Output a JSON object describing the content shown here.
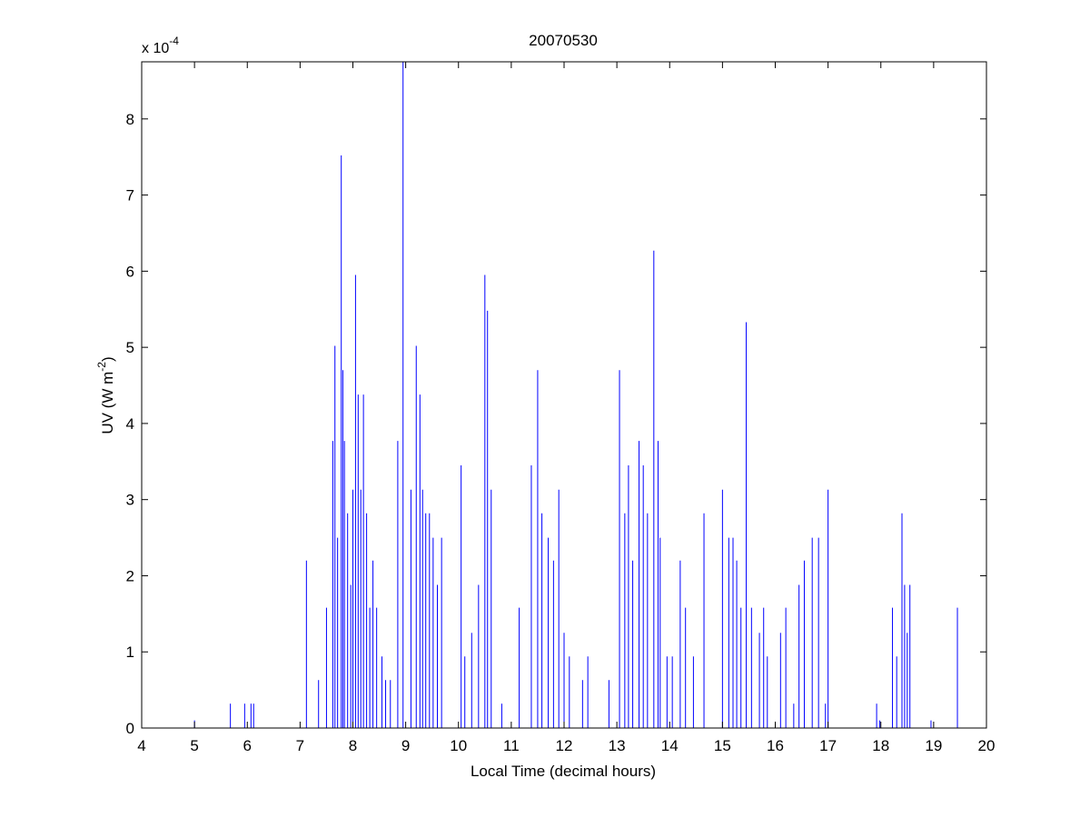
{
  "chart_data": {
    "type": "line",
    "title": "20070530",
    "xlabel": "Local Time (decimal hours)",
    "ylabel": "UV (W m",
    "ylabel_sup": "-2",
    "ylabel_close": ")",
    "y_multiplier_base": "x 10",
    "y_multiplier_exp": "-4",
    "xlim": [
      4,
      20
    ],
    "ylim": [
      0,
      8.75
    ],
    "x_ticks": [
      4,
      5,
      6,
      7,
      8,
      9,
      10,
      11,
      12,
      13,
      14,
      15,
      16,
      17,
      18,
      19,
      20
    ],
    "y_ticks": [
      0,
      1,
      2,
      3,
      4,
      5,
      6,
      7,
      8
    ],
    "grid": false,
    "series": [
      {
        "color": "#0000ff",
        "unit_scale": "1e-4",
        "x": [
          5.0,
          5.68,
          5.95,
          6.07,
          6.12,
          7.12,
          7.35,
          7.5,
          7.62,
          7.66,
          7.71,
          7.78,
          7.81,
          7.84,
          7.9,
          7.96,
          8.0,
          8.05,
          8.1,
          8.15,
          8.2,
          8.26,
          8.32,
          8.38,
          8.45,
          8.55,
          8.62,
          8.71,
          8.85,
          8.95,
          9.1,
          9.2,
          9.27,
          9.32,
          9.38,
          9.45,
          9.52,
          9.6,
          9.68,
          10.05,
          10.12,
          10.25,
          10.38,
          10.5,
          10.55,
          10.62,
          10.82,
          11.15,
          11.38,
          11.5,
          11.58,
          11.7,
          11.8,
          11.9,
          12.0,
          12.1,
          12.35,
          12.45,
          12.85,
          13.05,
          13.15,
          13.22,
          13.3,
          13.42,
          13.5,
          13.58,
          13.7,
          13.78,
          13.82,
          13.95,
          14.05,
          14.2,
          14.3,
          14.45,
          14.65,
          15.0,
          15.12,
          15.2,
          15.27,
          15.35,
          15.45,
          15.55,
          15.7,
          15.78,
          15.85,
          16.1,
          16.2,
          16.35,
          16.45,
          16.55,
          16.7,
          16.82,
          16.95,
          17.0,
          17.92,
          17.98,
          18.22,
          18.3,
          18.4,
          18.45,
          18.5,
          18.55,
          18.95,
          19.45
        ],
        "y": [
          0.1,
          0.32,
          0.32,
          0.32,
          0.32,
          2.2,
          0.63,
          1.58,
          3.77,
          5.02,
          2.5,
          7.52,
          4.7,
          3.77,
          2.82,
          1.88,
          3.13,
          5.95,
          4.38,
          3.13,
          4.38,
          2.82,
          1.58,
          2.2,
          1.58,
          0.94,
          0.63,
          0.63,
          3.77,
          8.75,
          3.13,
          5.02,
          4.38,
          3.13,
          2.82,
          2.82,
          2.5,
          1.88,
          2.5,
          3.45,
          0.94,
          1.25,
          1.88,
          5.95,
          5.48,
          3.13,
          0.32,
          1.58,
          3.45,
          4.7,
          2.82,
          2.5,
          2.2,
          3.13,
          1.25,
          0.94,
          0.63,
          0.94,
          0.63,
          4.7,
          2.82,
          3.45,
          2.2,
          3.77,
          3.45,
          2.82,
          6.27,
          3.77,
          2.5,
          0.94,
          0.94,
          2.2,
          1.58,
          0.94,
          2.82,
          3.13,
          2.5,
          2.5,
          2.2,
          1.58,
          5.33,
          1.58,
          1.25,
          1.58,
          0.94,
          1.25,
          1.58,
          0.32,
          1.88,
          2.2,
          2.5,
          2.5,
          0.32,
          3.13,
          0.32,
          0.1,
          1.58,
          0.94,
          2.82,
          1.88,
          1.25,
          1.88,
          0.1,
          1.58
        ]
      }
    ]
  }
}
